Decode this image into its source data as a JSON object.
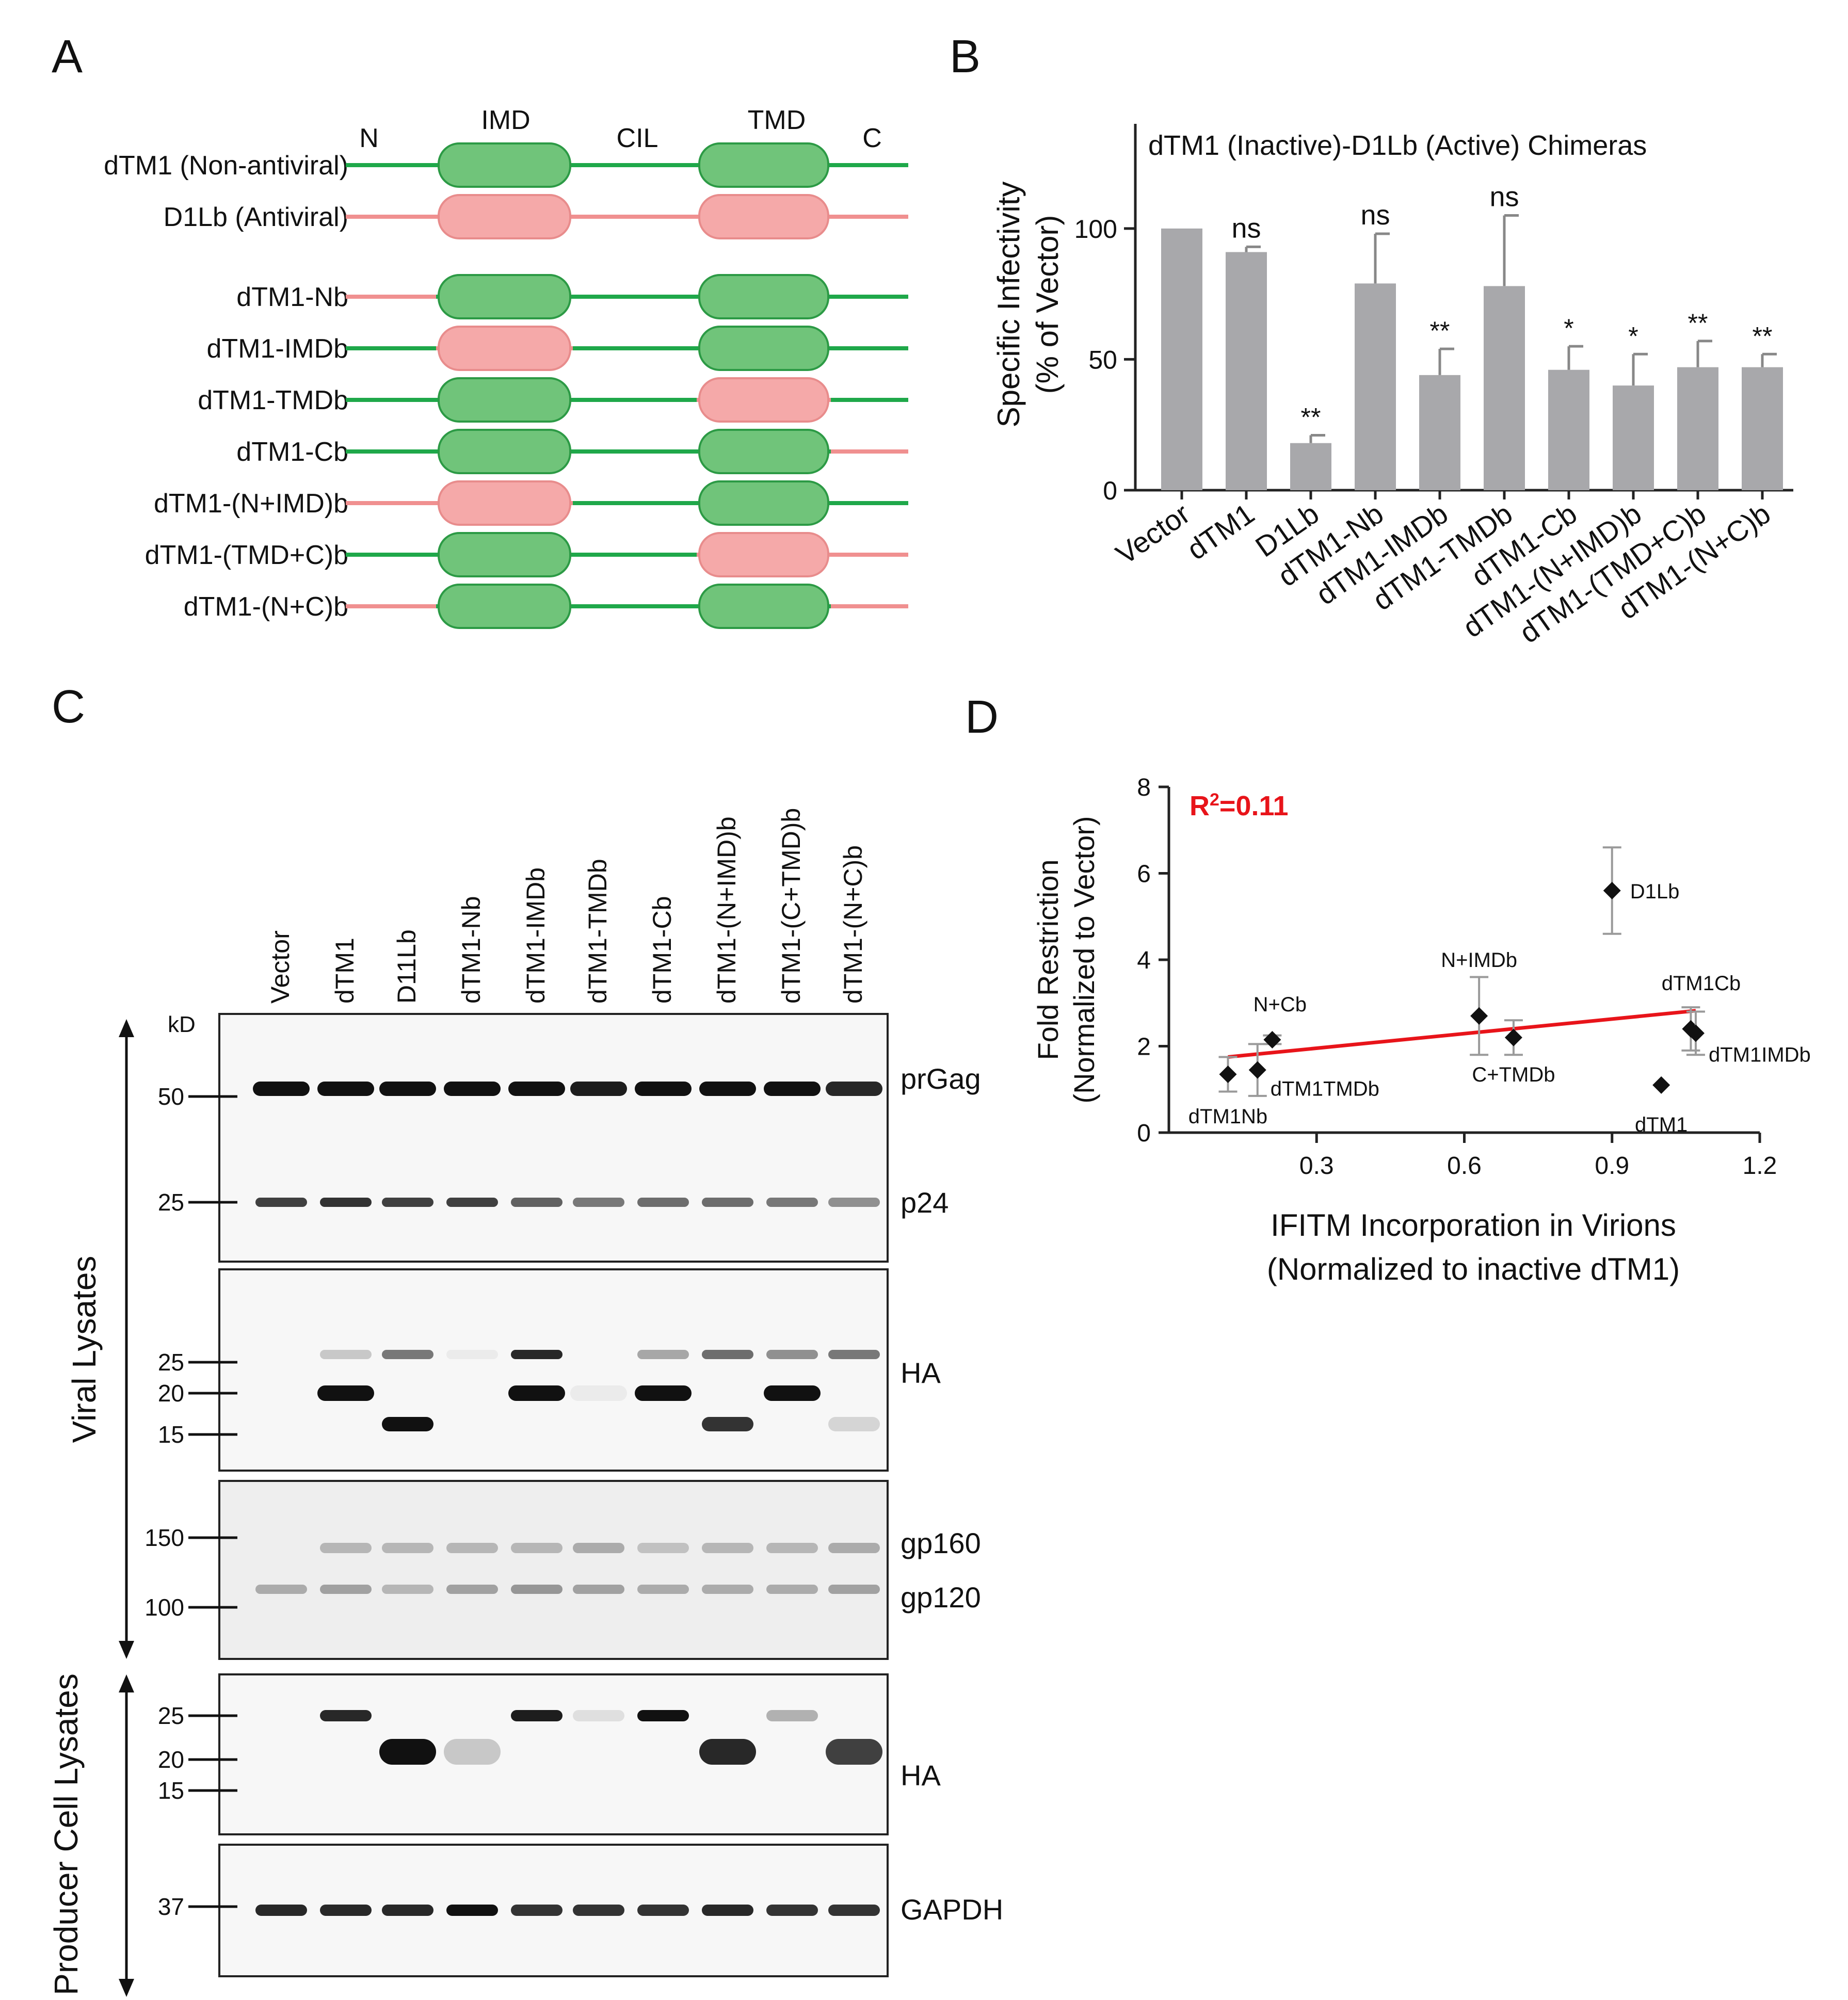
{
  "panels": {
    "A": {
      "letter": "A",
      "domain_labels": [
        "N",
        "IMD",
        "CIL",
        "TMD",
        "C"
      ],
      "rows": [
        {
          "label": "dTM1 (Non-antiviral)",
          "segments": [
            "g",
            "g",
            "g",
            "g",
            "g"
          ]
        },
        {
          "label": "D1Lb (Antiviral)",
          "segments": [
            "p",
            "p",
            "p",
            "p",
            "p"
          ]
        },
        {
          "label": "dTM1-Nb",
          "segments": [
            "p",
            "g",
            "g",
            "g",
            "g"
          ]
        },
        {
          "label": "dTM1-IMDb",
          "segments": [
            "g",
            "p",
            "g",
            "g",
            "g"
          ]
        },
        {
          "label": "dTM1-TMDb",
          "segments": [
            "g",
            "g",
            "g",
            "p",
            "g"
          ]
        },
        {
          "label": "dTM1-Cb",
          "segments": [
            "g",
            "g",
            "g",
            "g",
            "p"
          ]
        },
        {
          "label": "dTM1-(N+IMD)b",
          "segments": [
            "p",
            "p",
            "g",
            "g",
            "g"
          ]
        },
        {
          "label": "dTM1-(TMD+C)b",
          "segments": [
            "g",
            "g",
            "g",
            "p",
            "p"
          ]
        },
        {
          "label": "dTM1-(N+C)b",
          "segments": [
            "p",
            "g",
            "g",
            "g",
            "p"
          ]
        }
      ],
      "colors": {
        "g_line": "#1fa84a",
        "g_fill": "#70c47a",
        "g_stroke": "#2c9a45",
        "p_line": "#f09090",
        "p_fill": "#f5a9a9",
        "p_stroke": "#e88c8c"
      }
    },
    "B": {
      "letter": "B",
      "chart_data": {
        "type": "bar",
        "title": "dTM1 (Inactive)-D1Lb (Active) Chimeras",
        "ylabel_lines": [
          "Specific Infectivity",
          "(% of Vector)"
        ],
        "categories": [
          "Vector",
          "dTM1",
          "D1Lb",
          "dTM1-Nb",
          "dTM1-IMDb",
          "dTM1-TMDb",
          "dTM1-Cb",
          "dTM1-(N+IMD)b",
          "dTM1-(TMD+C)b",
          "dTM1-(N+C)b"
        ],
        "values": [
          100,
          91,
          18,
          79,
          44,
          78,
          46,
          40,
          47,
          47
        ],
        "errors": [
          0,
          2,
          3,
          19,
          10,
          27,
          9,
          12,
          10,
          5
        ],
        "significance": [
          "",
          "ns",
          "**",
          "ns",
          "**",
          "ns",
          "*",
          "*",
          "**",
          "**"
        ],
        "ylim": [
          0,
          140
        ],
        "yticks": [
          0,
          50,
          100
        ],
        "bar_color": "#a8a8ab"
      }
    },
    "C": {
      "letter": "C",
      "lanes": [
        "Vector",
        "dTM1",
        "D11Lb",
        "dTM1-Nb",
        "dTM1-IMDb",
        "dTM1-TMDb",
        "dTM1-Cb",
        "dTM1-(N+IMD)b",
        "dTM1-(C+TMD)b",
        "dTM1-(N+C)b"
      ],
      "kd_label": "kD",
      "group_viral": "Viral Lysates",
      "group_producer": "Producer Cell Lysates",
      "blots": [
        {
          "markers": [
            "50",
            "25"
          ],
          "bands": [
            "prGag",
            "p24"
          ]
        },
        {
          "markers": [
            "25",
            "20",
            "15"
          ],
          "bands": [
            "HA"
          ]
        },
        {
          "markers": [
            "150",
            "100"
          ],
          "bands": [
            "gp160",
            "gp120"
          ]
        },
        {
          "markers": [
            "25",
            "20",
            "15"
          ],
          "bands": [
            "HA"
          ]
        },
        {
          "markers": [
            "37"
          ],
          "bands": [
            "GAPDH"
          ]
        }
      ]
    },
    "D": {
      "letter": "D",
      "chart_data": {
        "type": "scatter",
        "annotation": "R²=0.11",
        "xlabel_lines": [
          "IFITM Incorporation in Virions",
          "(Normalized to inactive dTM1)"
        ],
        "ylabel_lines": [
          "Fold Restriction",
          "(Normalized to Vector)"
        ],
        "xlim": [
          0,
          1.2
        ],
        "ylim": [
          0,
          8
        ],
        "xticks": [
          "0.3",
          "0.6",
          "0.9",
          "1.2"
        ],
        "yticks": [
          "0",
          "2",
          "4",
          "6",
          "8"
        ],
        "points": [
          {
            "label": "D1Lb",
            "x": 0.9,
            "y": 5.6,
            "err": 1.0
          },
          {
            "label": "N+IMDb",
            "x": 0.63,
            "y": 2.7,
            "err": 0.9
          },
          {
            "label": "C+TMDb",
            "x": 0.7,
            "y": 2.2,
            "err": 0.4
          },
          {
            "label": "N+Cb",
            "x": 0.21,
            "y": 2.15,
            "err": 0.1
          },
          {
            "label": "dTM1TMDb",
            "x": 0.18,
            "y": 1.45,
            "err": 0.6
          },
          {
            "label": "dTM1Nb",
            "x": 0.12,
            "y": 1.35,
            "err": 0.4
          },
          {
            "label": "dTM1Cb",
            "x": 1.06,
            "y": 2.4,
            "err": 0.5
          },
          {
            "label": "dTM1IMDb",
            "x": 1.07,
            "y": 2.3,
            "err": 0.5
          },
          {
            "label": "dTM1",
            "x": 1.0,
            "y": 1.1,
            "err": 0.0
          }
        ],
        "fit_line": {
          "x": [
            0.12,
            1.07
          ],
          "y": [
            1.75,
            2.82
          ],
          "color": "#e8141a"
        }
      }
    }
  }
}
